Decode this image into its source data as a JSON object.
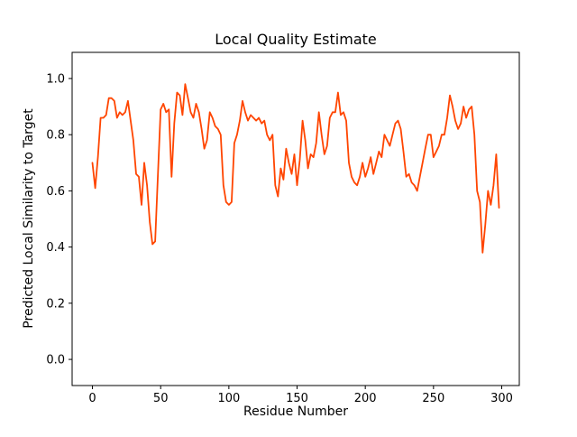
{
  "chart_data": {
    "type": "line",
    "title": "Local Quality Estimate",
    "xlabel": "Residue Number",
    "ylabel": "Predicted Local Similarity to Target",
    "xlim": [
      -14.9,
      312.9
    ],
    "ylim": [
      -0.093,
      1.093
    ],
    "xticks": [
      0,
      50,
      100,
      150,
      200,
      250,
      300
    ],
    "yticks": [
      0.0,
      0.2,
      0.4,
      0.6,
      0.8,
      1.0
    ],
    "grid": false,
    "legend": null,
    "line_color": "#FF4500",
    "line_width": 1.8,
    "background": "#FFFFFF",
    "x": [
      0,
      2,
      4,
      6,
      8,
      10,
      12,
      14,
      16,
      18,
      20,
      22,
      24,
      26,
      28,
      30,
      32,
      34,
      36,
      38,
      40,
      42,
      44,
      46,
      48,
      50,
      52,
      54,
      56,
      58,
      60,
      62,
      64,
      66,
      68,
      70,
      72,
      74,
      76,
      78,
      80,
      82,
      84,
      86,
      88,
      90,
      92,
      94,
      96,
      98,
      100,
      102,
      104,
      106,
      108,
      110,
      112,
      114,
      116,
      118,
      120,
      122,
      124,
      126,
      128,
      130,
      132,
      134,
      136,
      138,
      140,
      142,
      144,
      146,
      148,
      150,
      152,
      154,
      156,
      158,
      160,
      162,
      164,
      166,
      168,
      170,
      172,
      174,
      176,
      178,
      180,
      182,
      184,
      186,
      188,
      190,
      192,
      194,
      196,
      198,
      200,
      202,
      204,
      206,
      208,
      210,
      212,
      214,
      216,
      218,
      220,
      222,
      224,
      226,
      228,
      230,
      232,
      234,
      236,
      238,
      240,
      242,
      244,
      246,
      248,
      250,
      252,
      254,
      256,
      258,
      260,
      262,
      264,
      266,
      268,
      270,
      272,
      274,
      276,
      278,
      280,
      282,
      284,
      286,
      288,
      290,
      292,
      294,
      296,
      298
    ],
    "y": [
      0.7,
      0.61,
      0.72,
      0.86,
      0.86,
      0.87,
      0.93,
      0.93,
      0.92,
      0.86,
      0.88,
      0.87,
      0.88,
      0.92,
      0.85,
      0.78,
      0.66,
      0.65,
      0.55,
      0.7,
      0.62,
      0.49,
      0.41,
      0.42,
      0.66,
      0.89,
      0.91,
      0.88,
      0.89,
      0.65,
      0.84,
      0.95,
      0.94,
      0.87,
      0.98,
      0.93,
      0.88,
      0.86,
      0.91,
      0.88,
      0.82,
      0.75,
      0.78,
      0.88,
      0.86,
      0.83,
      0.82,
      0.8,
      0.62,
      0.56,
      0.55,
      0.56,
      0.77,
      0.8,
      0.85,
      0.92,
      0.88,
      0.85,
      0.87,
      0.86,
      0.85,
      0.86,
      0.84,
      0.85,
      0.8,
      0.78,
      0.8,
      0.62,
      0.58,
      0.68,
      0.64,
      0.75,
      0.7,
      0.66,
      0.73,
      0.62,
      0.71,
      0.85,
      0.78,
      0.68,
      0.73,
      0.72,
      0.77,
      0.88,
      0.8,
      0.73,
      0.76,
      0.86,
      0.88,
      0.88,
      0.95,
      0.87,
      0.88,
      0.85,
      0.7,
      0.65,
      0.63,
      0.62,
      0.65,
      0.7,
      0.65,
      0.68,
      0.72,
      0.66,
      0.7,
      0.74,
      0.72,
      0.8,
      0.78,
      0.76,
      0.8,
      0.84,
      0.85,
      0.82,
      0.74,
      0.65,
      0.66,
      0.63,
      0.62,
      0.6,
      0.65,
      0.7,
      0.75,
      0.8,
      0.8,
      0.72,
      0.74,
      0.76,
      0.8,
      0.8,
      0.86,
      0.94,
      0.9,
      0.85,
      0.82,
      0.84,
      0.9,
      0.86,
      0.89,
      0.9,
      0.8,
      0.6,
      0.56,
      0.38,
      0.48,
      0.6,
      0.55,
      0.62,
      0.73,
      0.54
    ]
  }
}
